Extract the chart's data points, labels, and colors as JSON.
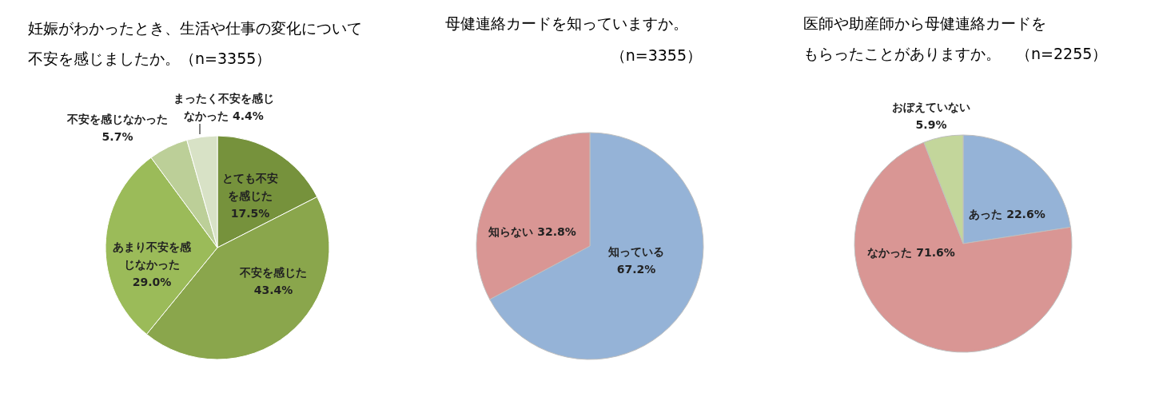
{
  "chart_data": [
    {
      "type": "pie",
      "title": "妊娠がわかったとき、生活や仕事の変化について不安を感じましたか。（n=3355）",
      "categories": [
        "とても不安を感じた",
        "不安を感じた",
        "あまり不安を感じなかった",
        "不安を感じなかった",
        "まったく不安を感じなかった"
      ],
      "values": [
        17.5,
        43.4,
        29.0,
        5.7,
        4.4
      ],
      "value_labels": [
        "17.5%",
        "43.4%",
        "29.0%",
        "5.7%",
        "4.4%"
      ],
      "colors": [
        "#76923c",
        "#8aa64c",
        "#9bbb59",
        "#bccf98",
        "#d8e2c6"
      ]
    },
    {
      "type": "pie",
      "title": "母健連絡カードを知っていますか。",
      "subtitle": "（n=3355）",
      "categories": [
        "知っている",
        "知らない"
      ],
      "values": [
        67.2,
        32.8
      ],
      "value_labels": [
        "67.2%",
        "32.8%"
      ],
      "colors": [
        "#95b3d7",
        "#d99694"
      ]
    },
    {
      "type": "pie",
      "title": "医師や助産師から母健連絡カードをもらったことがありますか。　（n=2255）",
      "categories": [
        "あった",
        "なかった",
        "おぼえていない"
      ],
      "values": [
        22.6,
        71.6,
        5.9
      ],
      "value_labels": [
        "22.6%",
        "71.6%",
        "5.9%"
      ],
      "colors": [
        "#95b3d7",
        "#d99694",
        "#c3d69b"
      ]
    }
  ]
}
